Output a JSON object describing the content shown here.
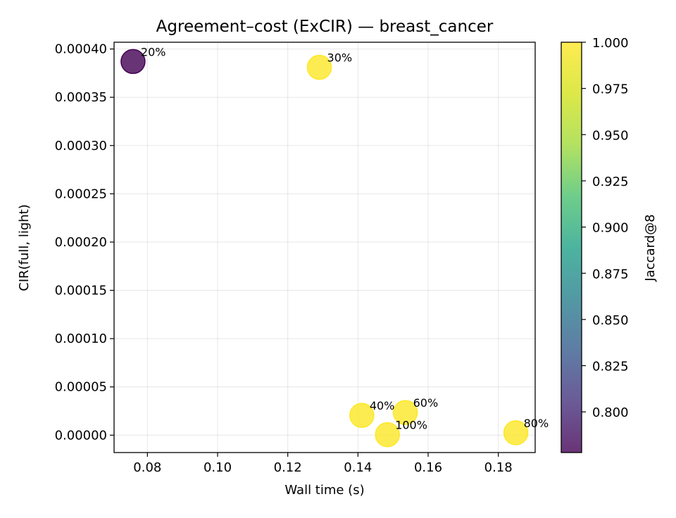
{
  "chart_data": {
    "type": "scatter",
    "title": "Agreement–cost (ExCIR) — breast_cancer",
    "xlabel": "Wall time (s)",
    "ylabel": "CIR(full, light)",
    "xlim": [
      0.0705,
      0.1905
    ],
    "ylim": [
      -1.8e-05,
      0.000407
    ],
    "xticks": [
      0.08,
      0.1,
      0.12,
      0.14,
      0.16,
      0.18
    ],
    "xtick_labels": [
      "0.08",
      "0.10",
      "0.12",
      "0.14",
      "0.16",
      "0.18"
    ],
    "yticks": [
      0,
      5e-05,
      0.0001,
      0.00015,
      0.0002,
      0.00025,
      0.0003,
      0.00035,
      0.0004
    ],
    "ytick_labels": [
      "0.00000",
      "0.00005",
      "0.00010",
      "0.00015",
      "0.00020",
      "0.00025",
      "0.00030",
      "0.00035",
      "0.00040"
    ],
    "grid": true,
    "points": [
      {
        "label": "20%",
        "x": 0.0759,
        "y": 0.000387,
        "jaccard": 0.778
      },
      {
        "label": "30%",
        "x": 0.129,
        "y": 0.000381,
        "jaccard": 1.0
      },
      {
        "label": "40%",
        "x": 0.1411,
        "y": 2.05e-05,
        "jaccard": 1.0
      },
      {
        "label": "60%",
        "x": 0.1535,
        "y": 2.35e-05,
        "jaccard": 1.0
      },
      {
        "label": "100%",
        "x": 0.1484,
        "y": 5e-07,
        "jaccard": 1.0
      },
      {
        "label": "80%",
        "x": 0.185,
        "y": 2.5e-06,
        "jaccard": 1.0
      }
    ],
    "colorbar": {
      "label": "Jaccard@8",
      "colormap": "viridis",
      "range": [
        0.778,
        1.0
      ],
      "ticks": [
        0.8,
        0.825,
        0.85,
        0.875,
        0.9,
        0.925,
        0.95,
        0.975,
        1.0
      ],
      "tick_labels": [
        "0.800",
        "0.825",
        "0.850",
        "0.875",
        "0.900",
        "0.925",
        "0.950",
        "0.975",
        "1.000"
      ]
    },
    "colors": {
      "low": "#440154",
      "high": "#fde725"
    }
  }
}
